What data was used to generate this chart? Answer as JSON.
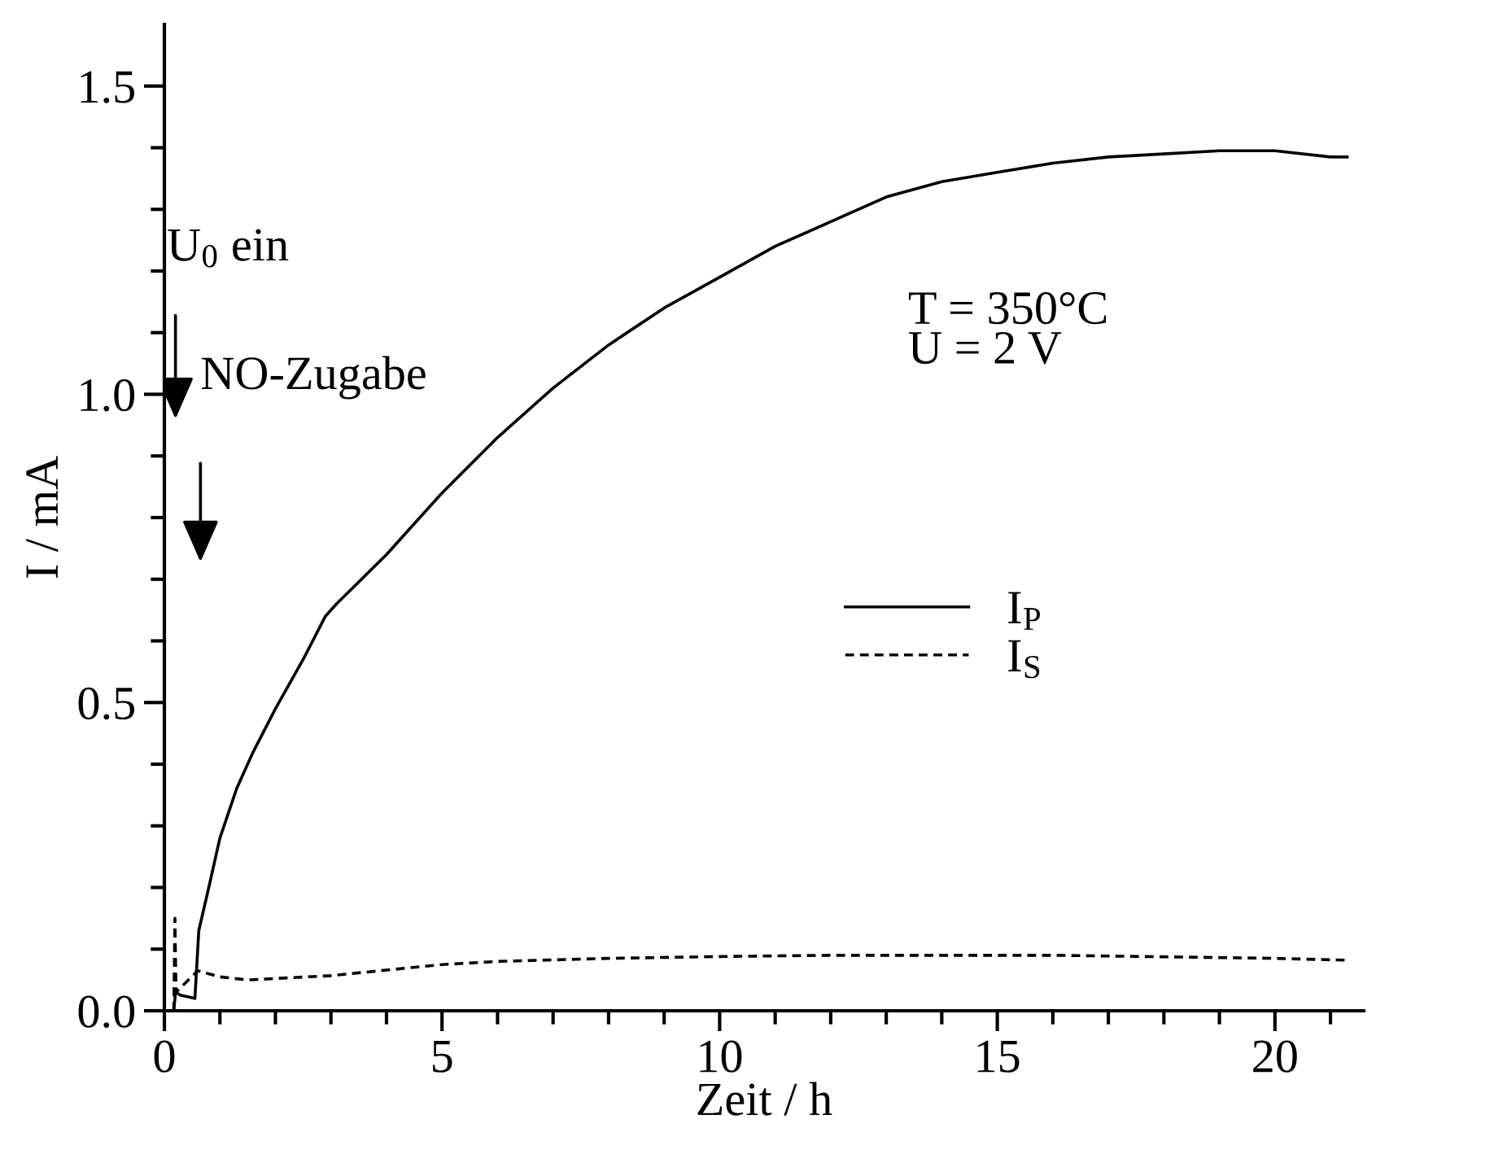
{
  "chart_data": {
    "type": "line",
    "xlabel": "Zeit / h",
    "ylabel": "I / mA",
    "xlim": [
      0,
      21.6
    ],
    "ylim": [
      0,
      1.6
    ],
    "xticks": [
      0,
      {
        "value": 1,
        "label": null
      },
      {
        "value": 2,
        "label": null
      },
      {
        "value": 3,
        "label": null
      },
      {
        "value": 4,
        "label": null
      },
      5,
      {
        "value": 6,
        "label": null
      },
      {
        "value": 7,
        "label": null
      },
      {
        "value": 8,
        "label": null
      },
      {
        "value": 9,
        "label": null
      },
      10,
      {
        "value": 11,
        "label": null
      },
      {
        "value": 12,
        "label": null
      },
      {
        "value": 13,
        "label": null
      },
      {
        "value": 14,
        "label": null
      },
      15,
      {
        "value": 16,
        "label": null
      },
      {
        "value": 17,
        "label": null
      },
      {
        "value": 18,
        "label": null
      },
      {
        "value": 19,
        "label": null
      },
      20,
      {
        "value": 21,
        "label": null
      }
    ],
    "yticks": [
      {
        "value": 0,
        "label": "0.0"
      },
      {
        "value": 0.1,
        "label": null
      },
      {
        "value": 0.2,
        "label": null
      },
      {
        "value": 0.3,
        "label": null
      },
      {
        "value": 0.4,
        "label": null
      },
      0.5,
      {
        "value": 0.6,
        "label": null
      },
      {
        "value": 0.7,
        "label": null
      },
      {
        "value": 0.8,
        "label": null
      },
      {
        "value": 0.9,
        "label": null
      },
      {
        "value": 1.0,
        "label": "1.0"
      },
      {
        "value": 1.1,
        "label": null
      },
      {
        "value": 1.2,
        "label": null
      },
      {
        "value": 1.3,
        "label": null
      },
      {
        "value": 1.4,
        "label": null
      },
      1.5
    ],
    "grid": false,
    "legend": "center",
    "series": [
      {
        "name": "I$_{P}$",
        "color": "#000000",
        "line_style": "solid",
        "x": [
          0,
          0.17,
          0.2,
          0.3,
          0.55,
          0.62,
          0.8,
          1.0,
          1.3,
          1.6,
          2.0,
          2.5,
          2.9,
          3.1,
          4,
          5,
          6,
          7,
          8,
          9,
          10,
          11,
          12,
          13,
          14,
          15,
          16,
          17,
          18,
          19,
          20,
          21,
          21.3
        ],
        "values": [
          0,
          0,
          0.03,
          0.025,
          0.02,
          0.13,
          0.2,
          0.28,
          0.36,
          0.42,
          0.49,
          0.57,
          0.64,
          0.66,
          0.74,
          0.84,
          0.93,
          1.01,
          1.08,
          1.14,
          1.19,
          1.24,
          1.28,
          1.32,
          1.345,
          1.36,
          1.375,
          1.385,
          1.39,
          1.395,
          1.395,
          1.385,
          1.385
        ]
      },
      {
        "name": "I$_{S}$",
        "color": "#000000",
        "line_style": "dashed",
        "x": [
          0.17,
          0.19,
          0.21,
          0.6,
          1.0,
          1.5,
          3,
          4,
          5,
          6,
          8,
          10,
          12,
          16,
          20,
          21.3
        ],
        "values": [
          0,
          0.15,
          0.03,
          0.065,
          0.055,
          0.05,
          0.057,
          0.066,
          0.075,
          0.08,
          0.085,
          0.088,
          0.09,
          0.09,
          0.085,
          0.082
        ]
      }
    ],
    "annotations": [
      "U$_{0}$ ein",
      "NO-Zugabe",
      "T = 350°C\nU = 2 V"
    ]
  }
}
